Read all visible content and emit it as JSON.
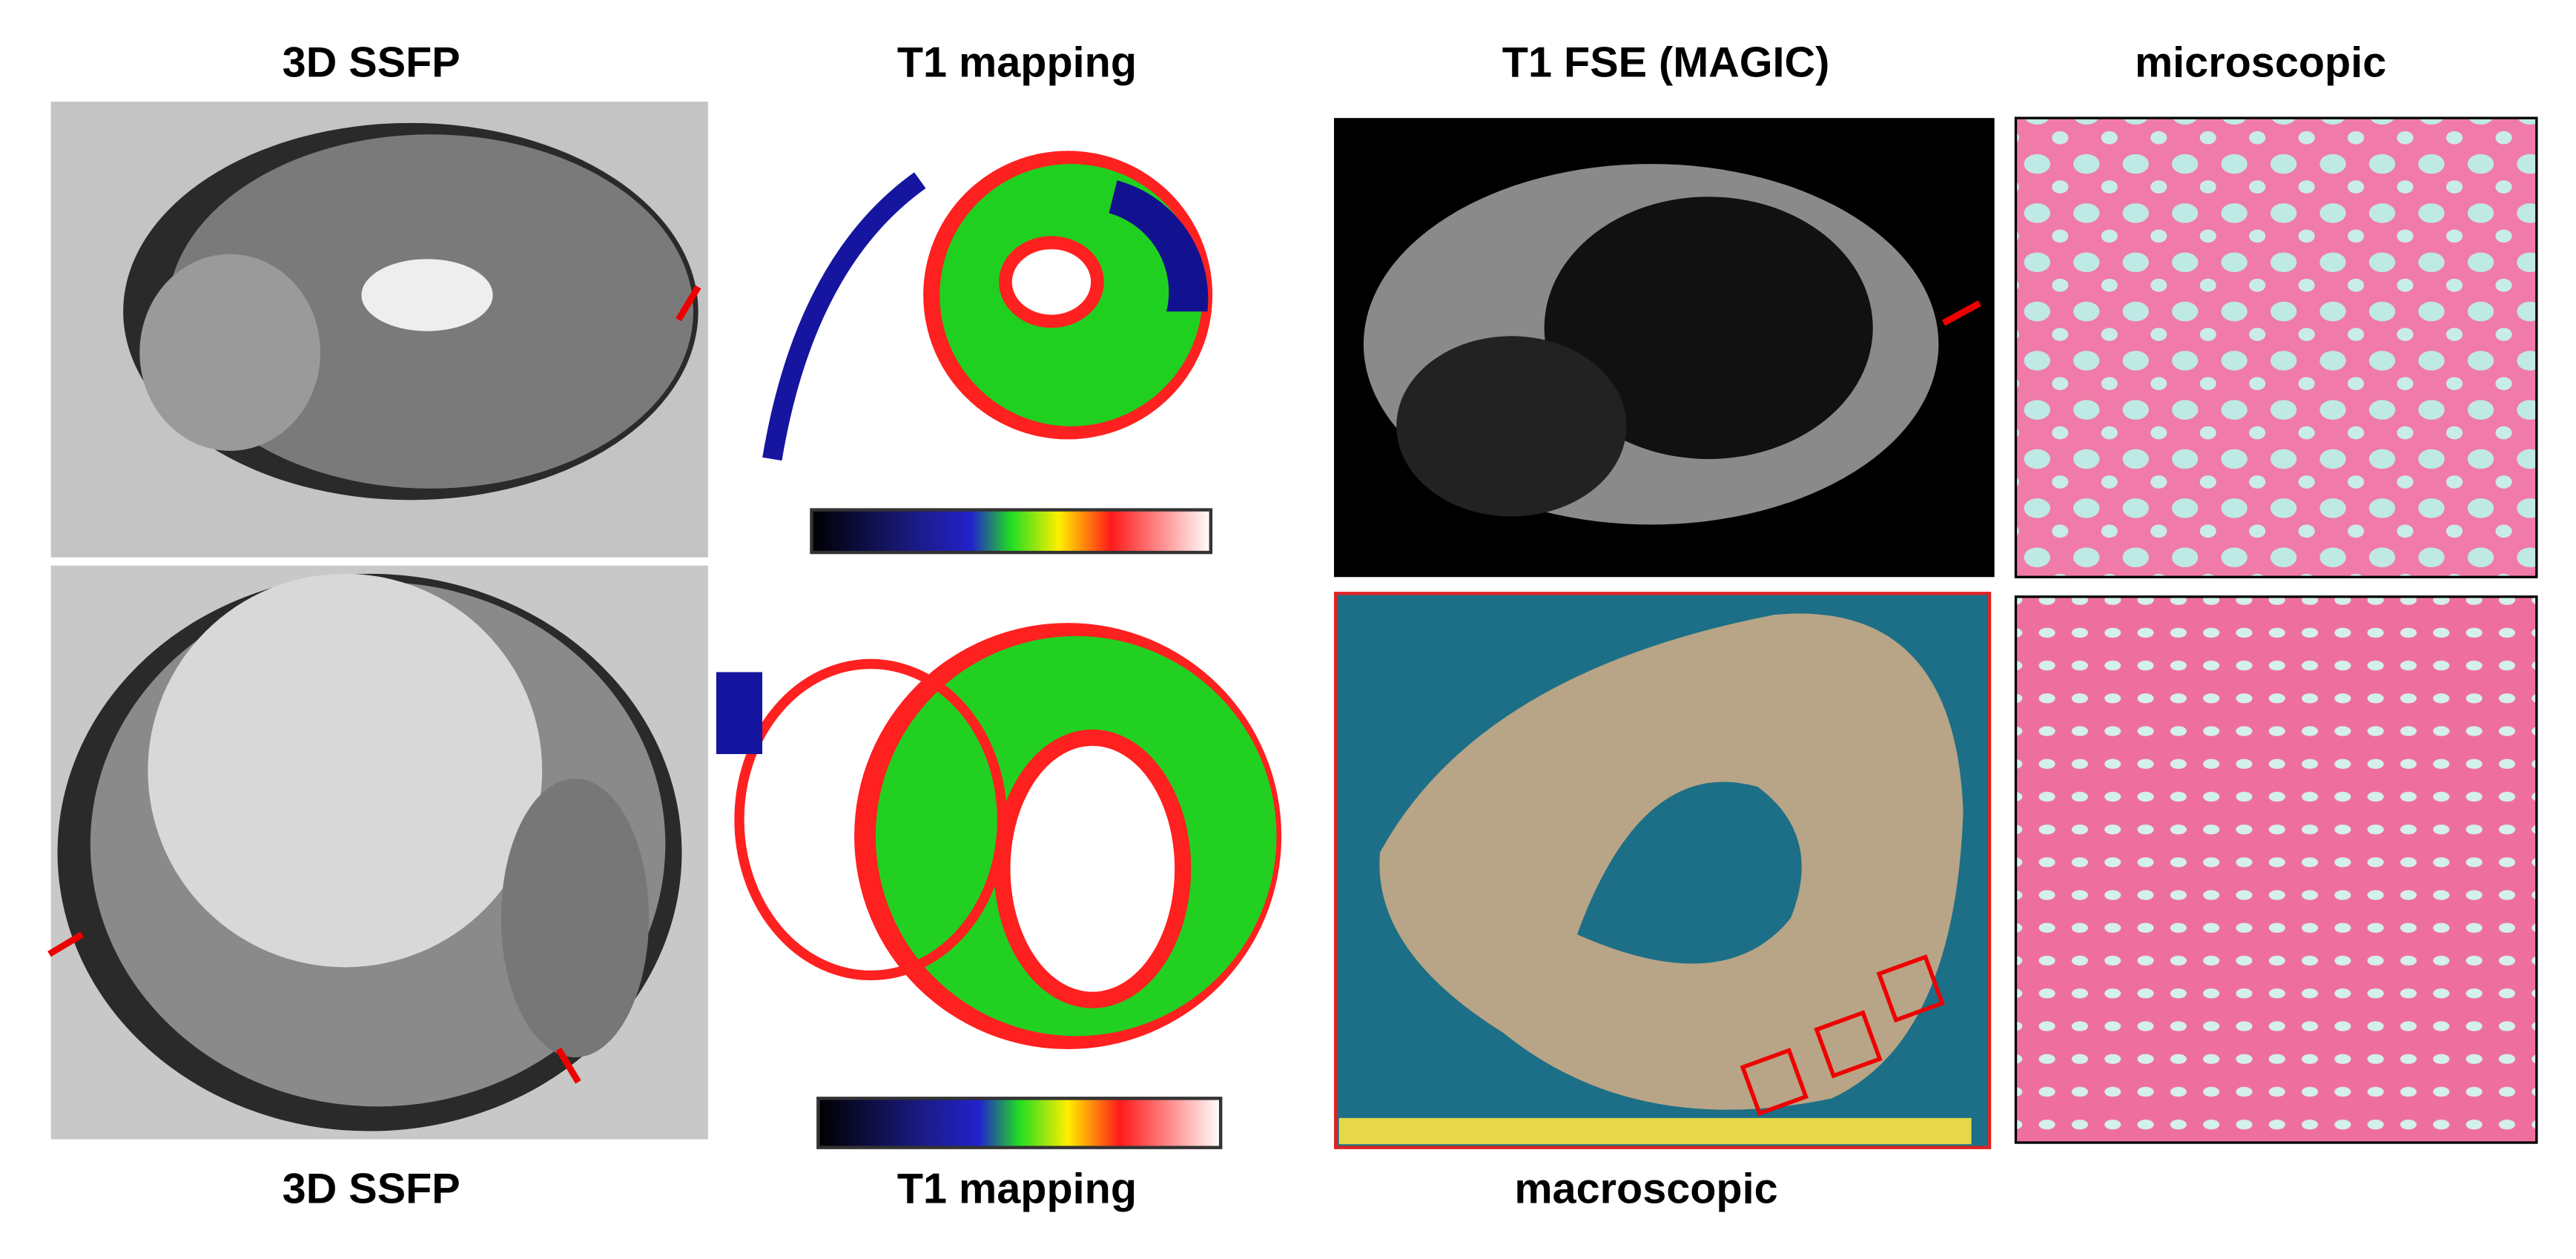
{
  "top_labels": [
    "3D SSFP",
    "T1 mapping",
    "T1 FSE (MAGIC)",
    "microscopic"
  ],
  "bottom_labels": [
    "3D SSFP",
    "T1 mapping",
    "macroscopic"
  ]
}
